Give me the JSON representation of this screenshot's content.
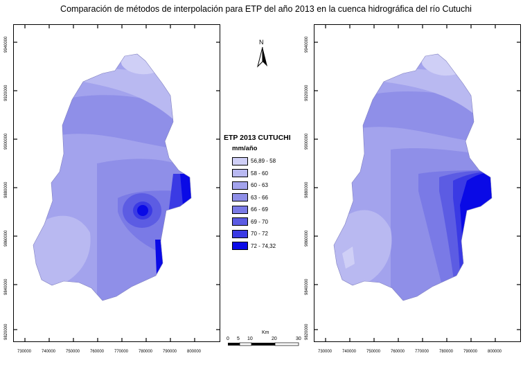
{
  "title": "Comparación de métodos de interpolación para ETP del año 2013 en la cuenca hidrográfica del río Cutuchi",
  "north_arrow_label": "N",
  "legend": {
    "title": "ETP 2013 CUTUCHI",
    "unit": "mm/año",
    "classes": [
      {
        "label": "56,89 - 58",
        "color": "#cfcff6"
      },
      {
        "label": "58 - 60",
        "color": "#b9b9f1"
      },
      {
        "label": "60 - 63",
        "color": "#a3a3ed"
      },
      {
        "label": "63 - 66",
        "color": "#8f8fe8"
      },
      {
        "label": "66 - 69",
        "color": "#7a7ae6"
      },
      {
        "label": "69 - 70",
        "color": "#5c5ce3"
      },
      {
        "label": "70 - 72",
        "color": "#3a3ae4"
      },
      {
        "label": "72 - 74,32",
        "color": "#0a0ae6"
      }
    ]
  },
  "scale": {
    "unit_label": "Km",
    "ticks": [
      "0",
      "5",
      "10",
      "20",
      "30"
    ]
  },
  "axes": {
    "x_ticks": [
      "730000",
      "740000",
      "750000",
      "760000",
      "770000",
      "780000",
      "790000",
      "800000"
    ],
    "y_ticks": [
      "9940000",
      "9920000",
      "9900000",
      "9880000",
      "9860000",
      "9840000",
      "9820000"
    ]
  }
}
